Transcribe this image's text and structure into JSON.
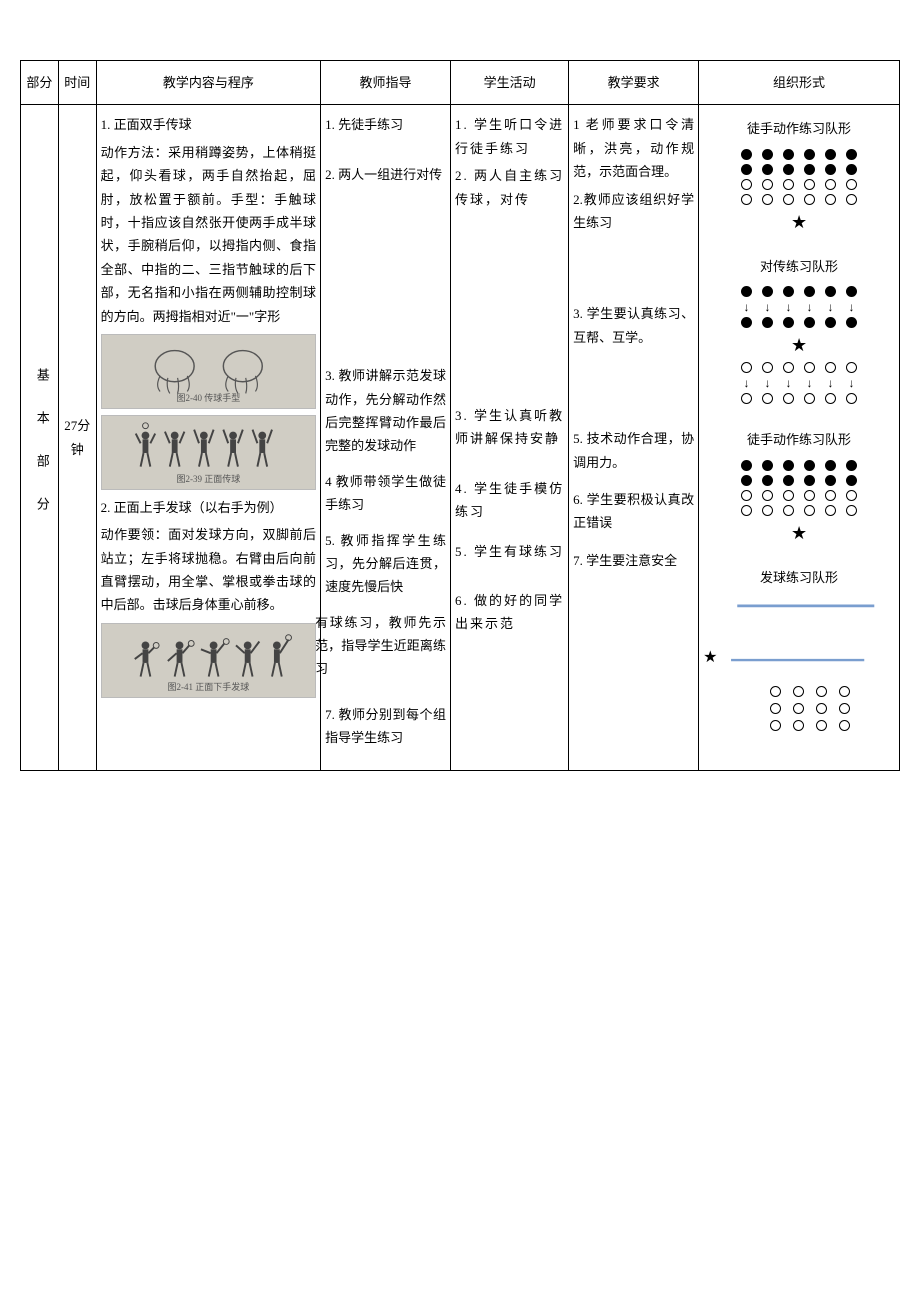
{
  "headers": {
    "section": "部分",
    "time": "时间",
    "content": "教学内容与程序",
    "teacher": "教师指导",
    "student": "学生活动",
    "require": "教学要求",
    "formation": "组织形式"
  },
  "section_label": "基本部分",
  "time_label": "27分钟",
  "content": {
    "item1_title": "1. 正面双手传球",
    "item1_body": "动作方法：采用稍蹲姿势，上体稍挺起，仰头看球，两手自然抬起，屈肘，放松置于额前。手型：手触球时，十指应该自然张开使两手成半球状，手腕稍后仰，以拇指内侧、食指全部、中指的二、三指节触球的后下部，无名指和小指在两侧辅助控制球的方向。两拇指相对近\"一\"字形",
    "illus1_caption": "图2-40 传球手型",
    "illus2_caption": "图2-39 正面传球",
    "item2_title": "2. 正面上手发球（以右手为例）",
    "item2_body": "动作要领：面对发球方向，双脚前后站立；左手将球抛稳。右臂由后向前直臂摆动，用全掌、掌根或拳击球的中后部。击球后身体重心前移。",
    "illus3_caption": "图2-41 正面下手发球"
  },
  "teacher": {
    "t1": "1. 先徒手练习",
    "t2": "2. 两人一组进行对传",
    "t3": "3. 教师讲解示范发球动作，先分解动作然后完整挥臂动作最后完整的发球动作",
    "t4": "4 教师带领学生做徒手练习",
    "t5": "5. 教师指挥学生练习，先分解后连贯，速度先慢后快",
    "t6": "有球练习，教师先示范，指导学生近距离练习",
    "t7": "7. 教师分别到每个组指导学生练习"
  },
  "student": {
    "s1": "1. 学生听口令进行徒手练习",
    "s2": "2. 两人自主练习传球，对传",
    "s3": "3. 学生认真听教师讲解保持安静",
    "s4": "4. 学生徒手模仿练习",
    "s5": "5. 学生有球练习",
    "s6": "6. 做的好的同学出来示范"
  },
  "require": {
    "r1": "1 老师要求口令清晰，洪亮，动作规范，示范面合理。",
    "r2": "2.教师应该组织好学生练习",
    "r3": "3. 学生要认真练习、互帮、互学。",
    "r5": "5. 技术动作合理，协调用力。",
    "r6": "6. 学生要积极认真改正错误",
    "r7": "7. 学生要注意安全"
  },
  "formation": {
    "f1_title": "徒手动作练习队形",
    "f2_title": "对传练习队形",
    "f3_title": "徒手动作练习队形",
    "f4_title": "发球练习队形",
    "dots_per_row": 6,
    "serve_dots_per_row": 4,
    "serve_rows": 3,
    "star": "★",
    "arrow": "↓",
    "colors": {
      "filled": "#000000",
      "open_border": "#000000",
      "line": "#7a9ecf",
      "illus_bg": "#d0cdc4"
    }
  }
}
